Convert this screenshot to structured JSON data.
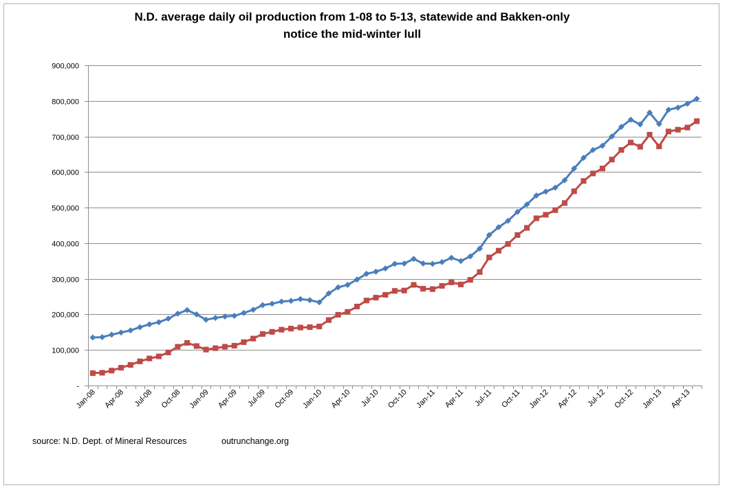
{
  "chart_data": {
    "type": "line",
    "title": "N.D. average daily oil production from 1-08 to 5-13, statewide and Bakken-only",
    "subtitle": "notice the mid-winter lull",
    "xlabel": "",
    "ylabel": "",
    "ylim": [
      0,
      900000
    ],
    "yticks": [
      0,
      100000,
      200000,
      300000,
      400000,
      500000,
      600000,
      700000,
      800000,
      900000
    ],
    "ytick_labels": [
      "-",
      "100,000",
      "200,000",
      "300,000",
      "400,000",
      "500,000",
      "600,000",
      "700,000",
      "800,000",
      "900,000"
    ],
    "grid": true,
    "legend": "none",
    "x_tick_labels": [
      "Jan-08",
      "Apr-08",
      "Jul-08",
      "Oct-08",
      "Jan-09",
      "Apr-09",
      "Jul-09",
      "Oct-09",
      "Jan-10",
      "Apr-10",
      "Jul-10",
      "Oct-10",
      "Jan-11",
      "Apr-11",
      "Jul-11",
      "Oct-11",
      "Jan-12",
      "Apr-12",
      "Jul-12",
      "Oct-12",
      "Jan-13",
      "Apr-13"
    ],
    "x_tick_every": 3,
    "months": [
      "Jan-08",
      "Feb-08",
      "Mar-08",
      "Apr-08",
      "May-08",
      "Jun-08",
      "Jul-08",
      "Aug-08",
      "Sep-08",
      "Oct-08",
      "Nov-08",
      "Dec-08",
      "Jan-09",
      "Feb-09",
      "Mar-09",
      "Apr-09",
      "May-09",
      "Jun-09",
      "Jul-09",
      "Aug-09",
      "Sep-09",
      "Oct-09",
      "Nov-09",
      "Dec-09",
      "Jan-10",
      "Feb-10",
      "Mar-10",
      "Apr-10",
      "May-10",
      "Jun-10",
      "Jul-10",
      "Aug-10",
      "Sep-10",
      "Oct-10",
      "Nov-10",
      "Dec-10",
      "Jan-11",
      "Feb-11",
      "Mar-11",
      "Apr-11",
      "May-11",
      "Jun-11",
      "Jul-11",
      "Aug-11",
      "Sep-11",
      "Oct-11",
      "Nov-11",
      "Dec-11",
      "Jan-12",
      "Feb-12",
      "Mar-12",
      "Apr-12",
      "May-12",
      "Jun-12",
      "Jul-12",
      "Aug-12",
      "Sep-12",
      "Oct-12",
      "Nov-12",
      "Dec-12",
      "Jan-13",
      "Feb-13",
      "Mar-13",
      "Apr-13",
      "May-13"
    ],
    "series": [
      {
        "name": "Statewide",
        "color": "#4a7ebb",
        "marker": "diamond",
        "values": [
          135000,
          136000,
          143000,
          149000,
          155000,
          164000,
          172000,
          178000,
          188000,
          202000,
          212000,
          200000,
          185000,
          190000,
          194000,
          196000,
          204000,
          213000,
          226000,
          230000,
          236000,
          238000,
          243000,
          240000,
          234000,
          259000,
          276000,
          283000,
          298000,
          314000,
          320000,
          329000,
          342000,
          343000,
          356000,
          343000,
          342000,
          347000,
          359000,
          350000,
          363000,
          385000,
          423000,
          445000,
          463000,
          488000,
          509000,
          534000,
          545000,
          556000,
          577000,
          610000,
          640000,
          662000,
          674000,
          700000,
          727000,
          747000,
          734000,
          767000,
          735000,
          775000,
          781000,
          792000,
          806000
        ]
      },
      {
        "name": "Bakken-only",
        "color": "#be4b48",
        "marker": "square",
        "values": [
          35000,
          36000,
          42000,
          50000,
          58000,
          68000,
          76000,
          82000,
          93000,
          109000,
          120000,
          111000,
          101000,
          105000,
          109000,
          112000,
          122000,
          132000,
          145000,
          151000,
          157000,
          160000,
          163000,
          164000,
          166000,
          184000,
          199000,
          207000,
          222000,
          239000,
          247000,
          255000,
          266000,
          267000,
          283000,
          272000,
          271000,
          280000,
          290000,
          284000,
          297000,
          319000,
          360000,
          379000,
          398000,
          423000,
          443000,
          470000,
          480000,
          493000,
          513000,
          546000,
          575000,
          596000,
          610000,
          635000,
          662000,
          683000,
          671000,
          705000,
          672000,
          714000,
          719000,
          725000,
          743000
        ]
      }
    ]
  },
  "footer": {
    "source": "source: N.D. Dept. of Mineral Resources",
    "site": "outrunchange.org"
  }
}
